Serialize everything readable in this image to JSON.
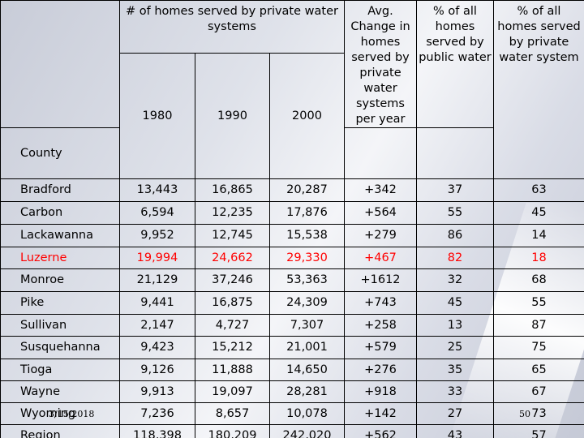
{
  "header": {
    "group_label": "# of homes served by private water systems",
    "county": "County",
    "y1980": "1980",
    "y1990": "1990",
    "y2000": "2000",
    "avg_change": "Avg. Change in homes served by private water systems per year",
    "pct_public": "% of all homes served by public water",
    "pct_private": "% of all homes served by private water system"
  },
  "rows": [
    {
      "county": "Bradford",
      "y1980": "13,443",
      "y1990": "16,865",
      "y2000": "20,287",
      "avg": "+342",
      "pub": "37",
      "priv": "63"
    },
    {
      "county": "Carbon",
      "y1980": "6,594",
      "y1990": "12,235",
      "y2000": "17,876",
      "avg": "+564",
      "pub": "55",
      "priv": "45"
    },
    {
      "county": "Lackawanna",
      "y1980": "9,952",
      "y1990": "12,745",
      "y2000": "15,538",
      "avg": "+279",
      "pub": "86",
      "priv": "14"
    },
    {
      "county": "Luzerne",
      "y1980": "19,994",
      "y1990": "24,662",
      "y2000": "29,330",
      "avg": "+467",
      "pub": "82",
      "priv": "18"
    },
    {
      "county": "Monroe",
      "y1980": "21,129",
      "y1990": "37,246",
      "y2000": "53,363",
      "avg": "+1612",
      "pub": "32",
      "priv": "68"
    },
    {
      "county": "Pike",
      "y1980": "9,441",
      "y1990": "16,875",
      "y2000": "24,309",
      "avg": "+743",
      "pub": "45",
      "priv": "55"
    },
    {
      "county": "Sullivan",
      "y1980": "2,147",
      "y1990": "4,727",
      "y2000": "7,307",
      "avg": "+258",
      "pub": "13",
      "priv": "87"
    },
    {
      "county": "Susquehanna",
      "y1980": "9,423",
      "y1990": "15,212",
      "y2000": "21,001",
      "avg": "+579",
      "pub": "25",
      "priv": "75"
    },
    {
      "county": "Tioga",
      "y1980": "9,126",
      "y1990": "11,888",
      "y2000": "14,650",
      "avg": "+276",
      "pub": "35",
      "priv": "65"
    },
    {
      "county": "Wayne",
      "y1980": "9,913",
      "y1990": "19,097",
      "y2000": "28,281",
      "avg": "+918",
      "pub": "33",
      "priv": "67"
    },
    {
      "county": "Wyoming",
      "y1980": "7,236",
      "y1990": "8,657",
      "y2000": "10,078",
      "avg": "+142",
      "pub": "27",
      "priv": "73"
    },
    {
      "county": "Region",
      "y1980": "118,398",
      "y1990": "180,209",
      "y2000": "242,020",
      "avg": "+562",
      "pub": "43",
      "priv": "57"
    }
  ],
  "highlight_color": "#ff0000",
  "footer": {
    "date": "3/15/2018",
    "page": "50"
  }
}
